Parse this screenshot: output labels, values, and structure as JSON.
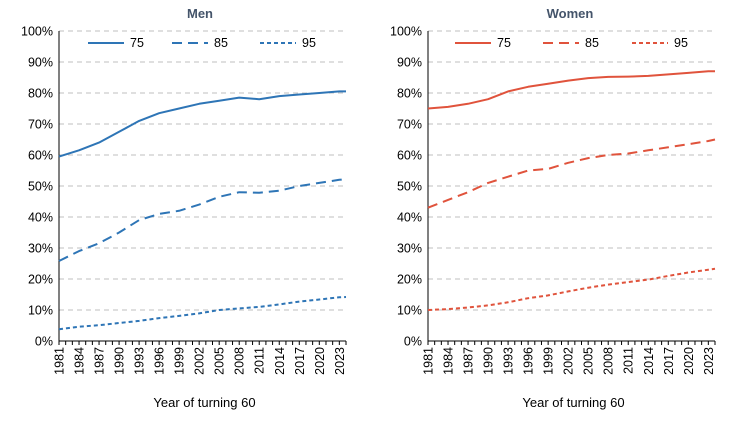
{
  "colors": {
    "men": "#2e75b6",
    "women": "#e0533c",
    "grid": "#bfbfbf"
  },
  "chart_data": [
    {
      "type": "line",
      "title": "Men",
      "xlabel": "Year of turning 60",
      "ylabel": "",
      "ylim": [
        0,
        100
      ],
      "yticks": [
        "0%",
        "10%",
        "20%",
        "30%",
        "40%",
        "50%",
        "60%",
        "70%",
        "80%",
        "90%",
        "100%"
      ],
      "xticks": [
        "1981",
        "1984",
        "1987",
        "1990",
        "1993",
        "1996",
        "1999",
        "2002",
        "2005",
        "2008",
        "2011",
        "2014",
        "2017",
        "2020",
        "2023"
      ],
      "x": [
        1981,
        1984,
        1987,
        1990,
        1993,
        1996,
        1999,
        2002,
        2005,
        2008,
        2011,
        2014,
        2017,
        2020,
        2023,
        2024
      ],
      "legend": "top",
      "series": [
        {
          "name": "75",
          "dash": "solid",
          "values": [
            59.5,
            61.5,
            64,
            67.5,
            71,
            73.5,
            75,
            76.5,
            77.5,
            78.5,
            78,
            79,
            79.5,
            80,
            80.5,
            80.5
          ]
        },
        {
          "name": "85",
          "dash": "long",
          "values": [
            25.8,
            29,
            31.5,
            35,
            39,
            41,
            42,
            44,
            46.5,
            48,
            47.8,
            48.5,
            50,
            51,
            52,
            52.2
          ]
        },
        {
          "name": "95",
          "dash": "short",
          "values": [
            3.8,
            4.6,
            5.1,
            5.8,
            6.5,
            7.4,
            8.1,
            8.9,
            10,
            10.5,
            11,
            11.8,
            12.7,
            13.4,
            14.1,
            14.2
          ]
        }
      ]
    },
    {
      "type": "line",
      "title": "Women",
      "xlabel": "Year of turning 60",
      "ylabel": "",
      "ylim": [
        0,
        100
      ],
      "yticks": [
        "0%",
        "10%",
        "20%",
        "30%",
        "40%",
        "50%",
        "60%",
        "70%",
        "80%",
        "90%",
        "100%"
      ],
      "xticks": [
        "1981",
        "1984",
        "1987",
        "1990",
        "1993",
        "1996",
        "1999",
        "2002",
        "2005",
        "2008",
        "2011",
        "2014",
        "2017",
        "2020",
        "2023"
      ],
      "x": [
        1981,
        1984,
        1987,
        1990,
        1993,
        1996,
        1999,
        2002,
        2005,
        2008,
        2011,
        2014,
        2017,
        2020,
        2023,
        2024
      ],
      "legend": "top",
      "series": [
        {
          "name": "75",
          "dash": "solid",
          "values": [
            75,
            75.5,
            76.5,
            78,
            80.5,
            82,
            83,
            84,
            84.8,
            85.2,
            85.3,
            85.5,
            86,
            86.5,
            87,
            87
          ]
        },
        {
          "name": "85",
          "dash": "long",
          "values": [
            43,
            45.5,
            48,
            51,
            53,
            55,
            55.5,
            57.5,
            59,
            60,
            60.5,
            61.5,
            62.5,
            63.5,
            64.5,
            65
          ]
        },
        {
          "name": "95",
          "dash": "short",
          "values": [
            10,
            10.3,
            10.8,
            11.5,
            12.5,
            13.8,
            14.7,
            16,
            17.2,
            18.2,
            19,
            19.8,
            21,
            22.1,
            23,
            23.3
          ]
        }
      ]
    }
  ]
}
